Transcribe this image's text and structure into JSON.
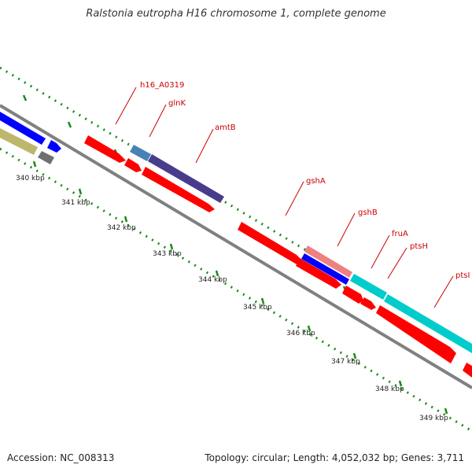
{
  "title": "Ralstonia eutropha H16 chromosome 1, complete genome",
  "footer": {
    "accession": "Accession: NC_008313",
    "info": "Topology: circular; Length: 4,052,032 bp; Genes: 3,711"
  },
  "colors": {
    "backbone": "#808080",
    "tick": "#1a8a1a",
    "label_line": "#cc0000",
    "label_text": "#cc0000"
  },
  "kbp_labels": [
    "340 kbp",
    "341 kbp",
    "342 kbp",
    "343 kbp",
    "344 kbp",
    "345 kbp",
    "346 kbp",
    "347 kbp",
    "348 kbp",
    "349 kbp"
  ],
  "gene_labels": [
    "h16_A0319",
    "glnK",
    "amtB",
    "gshA",
    "gshB",
    "fruA",
    "ptsH",
    "ptsI"
  ],
  "features": [
    {
      "color": "#0000ff"
    },
    {
      "color": "#bdb76b"
    },
    {
      "color": "#0000ff"
    },
    {
      "color": "#707070"
    },
    {
      "color": "#ff0000"
    },
    {
      "color": "#4682b4"
    },
    {
      "color": "#483d8b"
    },
    {
      "color": "#ff0000"
    },
    {
      "color": "#ff0000"
    },
    {
      "color": "#ff0000"
    },
    {
      "color": "#f08080"
    },
    {
      "color": "#0000ff"
    },
    {
      "color": "#ff0000"
    },
    {
      "color": "#00cccc"
    },
    {
      "color": "#00cccc"
    },
    {
      "color": "#ff0000"
    },
    {
      "color": "#ff0000"
    },
    {
      "color": "#ff0000"
    },
    {
      "color": "#ff0000"
    }
  ]
}
